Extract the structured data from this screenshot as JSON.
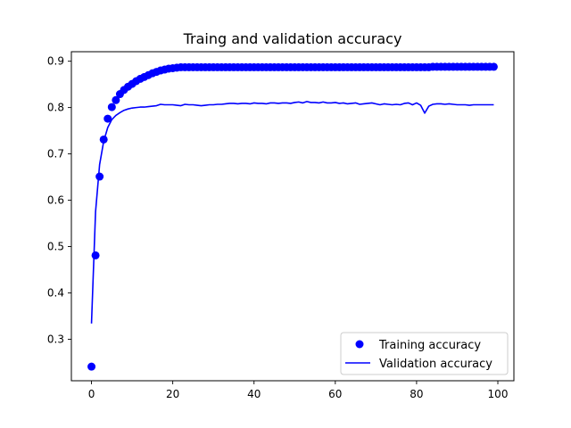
{
  "chart_data": {
    "type": "line",
    "title": "Traing and validation accuracy",
    "xlabel": "",
    "ylabel": "",
    "xlim": [
      -4.95,
      103.95
    ],
    "ylim": [
      0.2105,
      0.9205
    ],
    "xticks": [
      0,
      20,
      40,
      60,
      80,
      100
    ],
    "yticks": [
      0.3,
      0.4,
      0.5,
      0.6,
      0.7,
      0.8,
      0.9
    ],
    "grid": false,
    "legend_position": "bottom-right",
    "colors": {
      "series": "#0000ff",
      "axes": "#000000",
      "background": "#ffffff"
    },
    "series": [
      {
        "name": "Training accuracy",
        "style": "markers",
        "marker": "circle",
        "x": [
          0,
          1,
          2,
          3,
          4,
          5,
          6,
          7,
          8,
          9,
          10,
          11,
          12,
          13,
          14,
          15,
          16,
          17,
          18,
          19,
          20,
          21,
          22,
          23,
          24,
          25,
          26,
          27,
          28,
          29,
          30,
          31,
          32,
          33,
          34,
          35,
          36,
          37,
          38,
          39,
          40,
          41,
          42,
          43,
          44,
          45,
          46,
          47,
          48,
          49,
          50,
          51,
          52,
          53,
          54,
          55,
          56,
          57,
          58,
          59,
          60,
          61,
          62,
          63,
          64,
          65,
          66,
          67,
          68,
          69,
          70,
          71,
          72,
          73,
          74,
          75,
          76,
          77,
          78,
          79,
          80,
          81,
          82,
          83,
          84,
          85,
          86,
          87,
          88,
          89,
          90,
          91,
          92,
          93,
          94,
          95,
          96,
          97,
          98,
          99
        ],
        "y": [
          0.241,
          0.481,
          0.651,
          0.731,
          0.776,
          0.801,
          0.816,
          0.829,
          0.838,
          0.845,
          0.851,
          0.857,
          0.862,
          0.866,
          0.87,
          0.874,
          0.877,
          0.88,
          0.882,
          0.884,
          0.885,
          0.886,
          0.887,
          0.887,
          0.887,
          0.887,
          0.887,
          0.887,
          0.887,
          0.887,
          0.887,
          0.887,
          0.887,
          0.887,
          0.887,
          0.887,
          0.887,
          0.887,
          0.887,
          0.887,
          0.887,
          0.887,
          0.887,
          0.887,
          0.887,
          0.887,
          0.887,
          0.887,
          0.887,
          0.887,
          0.887,
          0.887,
          0.887,
          0.887,
          0.887,
          0.887,
          0.887,
          0.887,
          0.887,
          0.887,
          0.887,
          0.887,
          0.887,
          0.887,
          0.887,
          0.887,
          0.887,
          0.887,
          0.887,
          0.887,
          0.887,
          0.887,
          0.887,
          0.887,
          0.887,
          0.887,
          0.887,
          0.887,
          0.887,
          0.887,
          0.887,
          0.887,
          0.887,
          0.887,
          0.888,
          0.888,
          0.888,
          0.888,
          0.888,
          0.888,
          0.888,
          0.888,
          0.888,
          0.888,
          0.888,
          0.888,
          0.888,
          0.888,
          0.888,
          0.888
        ]
      },
      {
        "name": "Validation accuracy",
        "style": "line",
        "x": [
          0,
          1,
          2,
          3,
          4,
          5,
          6,
          7,
          8,
          9,
          10,
          11,
          12,
          13,
          14,
          15,
          16,
          17,
          18,
          19,
          20,
          21,
          22,
          23,
          24,
          25,
          26,
          27,
          28,
          29,
          30,
          31,
          32,
          33,
          34,
          35,
          36,
          37,
          38,
          39,
          40,
          41,
          42,
          43,
          44,
          45,
          46,
          47,
          48,
          49,
          50,
          51,
          52,
          53,
          54,
          55,
          56,
          57,
          58,
          59,
          60,
          61,
          62,
          63,
          64,
          65,
          66,
          67,
          68,
          69,
          70,
          71,
          72,
          73,
          74,
          75,
          76,
          77,
          78,
          79,
          80,
          81,
          82,
          83,
          84,
          85,
          86,
          87,
          88,
          89,
          90,
          91,
          92,
          93,
          94,
          95,
          96,
          97,
          98,
          99
        ],
        "y": [
          0.334,
          0.575,
          0.677,
          0.727,
          0.757,
          0.774,
          0.783,
          0.789,
          0.794,
          0.797,
          0.799,
          0.8,
          0.801,
          0.801,
          0.802,
          0.803,
          0.804,
          0.807,
          0.806,
          0.806,
          0.806,
          0.805,
          0.804,
          0.807,
          0.806,
          0.806,
          0.805,
          0.804,
          0.805,
          0.806,
          0.806,
          0.807,
          0.807,
          0.808,
          0.809,
          0.809,
          0.808,
          0.809,
          0.809,
          0.808,
          0.81,
          0.809,
          0.809,
          0.808,
          0.81,
          0.81,
          0.809,
          0.81,
          0.81,
          0.809,
          0.811,
          0.812,
          0.81,
          0.813,
          0.811,
          0.811,
          0.81,
          0.812,
          0.81,
          0.81,
          0.811,
          0.809,
          0.81,
          0.808,
          0.809,
          0.81,
          0.807,
          0.808,
          0.809,
          0.81,
          0.808,
          0.806,
          0.808,
          0.807,
          0.806,
          0.807,
          0.806,
          0.809,
          0.81,
          0.806,
          0.81,
          0.805,
          0.788,
          0.803,
          0.807,
          0.808,
          0.808,
          0.807,
          0.808,
          0.807,
          0.806,
          0.806,
          0.806,
          0.805,
          0.806,
          0.806,
          0.806,
          0.806,
          0.806,
          0.806
        ]
      }
    ]
  }
}
